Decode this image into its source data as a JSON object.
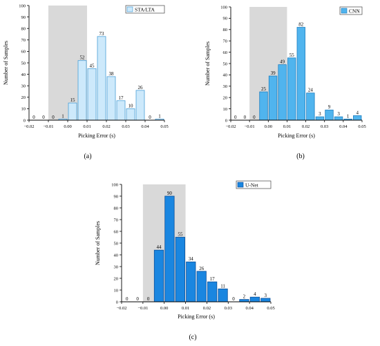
{
  "colors": {
    "band": "#d9d9d9",
    "stalta_fill": "#cde9fb",
    "stalta_stroke": "#4a9fd8",
    "cnn_fill": "#50b4ee",
    "cnn_stroke": "#1f7fc0",
    "unet_fill": "#1a86e0",
    "unet_stroke": "#0b4f9a"
  },
  "chart_data": [
    {
      "type": "bar",
      "panel_label": "(a)",
      "legend": "STA/LTA",
      "legend_position": "top-right",
      "xlabel": "Picking Error (s)",
      "ylabel": "Number of Samples",
      "xlim": [
        -0.02,
        0.05
      ],
      "ylim": [
        0,
        100
      ],
      "xticks": [
        -0.02,
        -0.01,
        0.0,
        0.01,
        0.02,
        0.03,
        0.04,
        0.05
      ],
      "xtick_labels": [
        "−0.02",
        "−0.01",
        "0.00",
        "0.01",
        "0.02",
        "0.03",
        "0.04",
        "0.05"
      ],
      "yticks": [
        0,
        10,
        20,
        30,
        40,
        50,
        60,
        70,
        80,
        90,
        100
      ],
      "shaded_range": [
        -0.01,
        0.01
      ],
      "bin_width": 0.005,
      "bin_starts": [
        -0.02,
        -0.015,
        -0.01,
        -0.005,
        0.0,
        0.005,
        0.01,
        0.015,
        0.02,
        0.025,
        0.03,
        0.035,
        0.04,
        0.045
      ],
      "values": [
        0,
        0,
        0,
        1,
        15,
        52,
        45,
        73,
        38,
        17,
        10,
        26,
        0,
        1
      ],
      "grid": false
    },
    {
      "type": "bar",
      "panel_label": "(b)",
      "legend": "CNN",
      "legend_position": "top-right",
      "xlabel": "Picking Error (s)",
      "ylabel": "Number of Samples",
      "xlim": [
        -0.02,
        0.05
      ],
      "ylim": [
        0,
        100
      ],
      "xticks": [
        -0.02,
        -0.01,
        0.0,
        0.01,
        0.02,
        0.03,
        0.04,
        0.05
      ],
      "xtick_labels": [
        "−0.02",
        "−0.01",
        "0.00",
        "0.01",
        "0.02",
        "0.03",
        "0.04",
        "0.05"
      ],
      "yticks": [
        0,
        10,
        20,
        30,
        40,
        50,
        60,
        70,
        80,
        90,
        100
      ],
      "shaded_range": [
        -0.01,
        0.01
      ],
      "bin_width": 0.005,
      "bin_starts": [
        -0.02,
        -0.015,
        -0.01,
        -0.005,
        0.0,
        0.005,
        0.01,
        0.015,
        0.02,
        0.025,
        0.03,
        0.035,
        0.04,
        0.045
      ],
      "values": [
        0,
        0,
        0,
        25,
        39,
        49,
        55,
        82,
        24,
        3,
        9,
        3,
        1,
        4
      ],
      "grid": false
    },
    {
      "type": "bar",
      "panel_label": "(c)",
      "legend": "U-Net",
      "legend_position": "top-right",
      "xlabel": "Picking Error (s)",
      "ylabel": "Number of Samples",
      "xlim": [
        -0.02,
        0.05
      ],
      "ylim": [
        0,
        100
      ],
      "xticks": [
        -0.02,
        -0.01,
        0.0,
        0.01,
        0.02,
        0.03,
        0.04,
        0.05
      ],
      "xtick_labels": [
        "−0.02",
        "−0.01",
        "0.00",
        "0.01",
        "0.02",
        "0.03",
        "0.04",
        "0.05"
      ],
      "yticks": [
        0,
        10,
        20,
        30,
        40,
        50,
        60,
        70,
        80,
        90,
        100
      ],
      "shaded_range": [
        -0.01,
        0.01
      ],
      "bin_width": 0.005,
      "bin_starts": [
        -0.02,
        -0.015,
        -0.01,
        -0.005,
        0.0,
        0.005,
        0.01,
        0.015,
        0.02,
        0.025,
        0.03,
        0.035,
        0.04,
        0.045
      ],
      "values": [
        0,
        0,
        0,
        44,
        90,
        55,
        34,
        26,
        17,
        11,
        0,
        2,
        4,
        3
      ],
      "grid": false
    }
  ]
}
